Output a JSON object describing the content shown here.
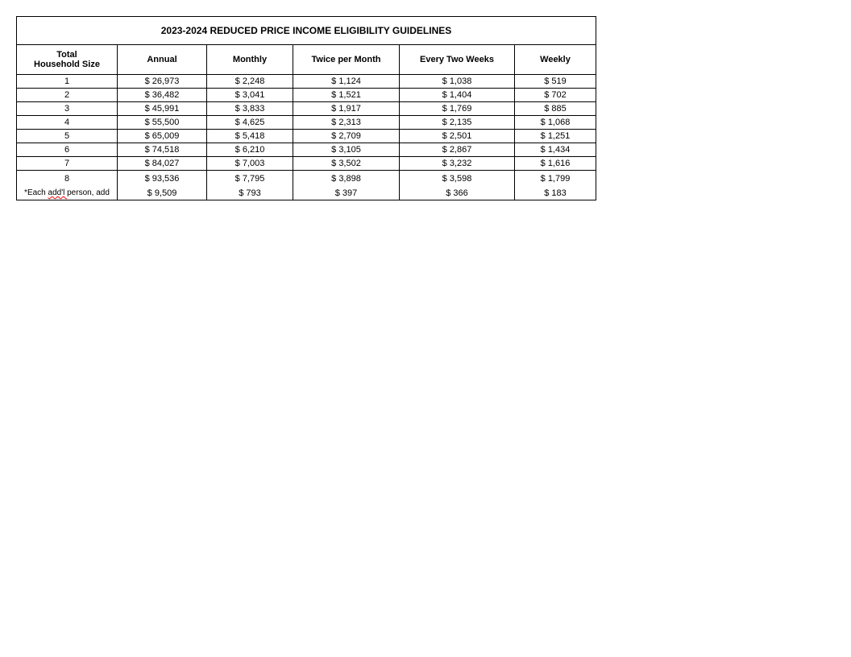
{
  "table": {
    "title": "2023-2024 REDUCED PRICE INCOME ELIGIBILITY GUIDELINES",
    "columns": {
      "size_line1": "Total",
      "size_line2": "Household Size",
      "annual": "Annual",
      "monthly": "Monthly",
      "twice_per_month": "Twice per Month",
      "every_two_weeks": "Every Two Weeks",
      "weekly": "Weekly"
    },
    "rows": [
      {
        "size": "1",
        "annual": "$ 26,973",
        "monthly": "$ 2,248",
        "twice": "$ 1,124",
        "twoweeks": "$ 1,038",
        "weekly": "$ 519"
      },
      {
        "size": "2",
        "annual": "$ 36,482",
        "monthly": "$ 3,041",
        "twice": "$ 1,521",
        "twoweeks": "$ 1,404",
        "weekly": "$ 702"
      },
      {
        "size": "3",
        "annual": "$ 45,991",
        "monthly": "$ 3,833",
        "twice": "$ 1,917",
        "twoweeks": "$ 1,769",
        "weekly": "$ 885"
      },
      {
        "size": "4",
        "annual": "$ 55,500",
        "monthly": "$ 4,625",
        "twice": "$ 2,313",
        "twoweeks": "$ 2,135",
        "weekly": "$ 1,068"
      },
      {
        "size": "5",
        "annual": "$ 65,009",
        "monthly": "$ 5,418",
        "twice": "$ 2,709",
        "twoweeks": "$ 2,501",
        "weekly": "$ 1,251"
      },
      {
        "size": "6",
        "annual": "$ 74,518",
        "monthly": "$ 6,210",
        "twice": "$ 3,105",
        "twoweeks": "$ 2,867",
        "weekly": "$ 1,434"
      },
      {
        "size": "7",
        "annual": "$ 84,027",
        "monthly": "$ 7,003",
        "twice": "$ 3,502",
        "twoweeks": "$ 3,232",
        "weekly": "$ 1,616"
      },
      {
        "size": "8",
        "annual": "$ 93,536",
        "monthly": "$ 7,795",
        "twice": "$ 3,898",
        "twoweeks": "$ 3,598",
        "weekly": "$ 1,799"
      }
    ],
    "footnote": {
      "prefix": "*Each ",
      "squiggle": "add'l ",
      "suffix": "person, add",
      "annual": "$ 9,509",
      "monthly": "$ 793",
      "twice": "$ 397",
      "twoweeks": "$ 366",
      "weekly": "$ 183"
    },
    "styling": {
      "border_color": "#000000",
      "background_color": "#ffffff",
      "text_color": "#000000",
      "squiggle_color": "#ff0000",
      "title_fontsize": 12,
      "header_fontsize": 11,
      "data_fontsize": 11,
      "footnote_fontsize": 10,
      "font_family": "Arial",
      "col_widths": {
        "size": 125,
        "annual": 111,
        "monthly": 107,
        "twice": 132,
        "twoweeks": 143,
        "weekly": 100
      }
    }
  }
}
